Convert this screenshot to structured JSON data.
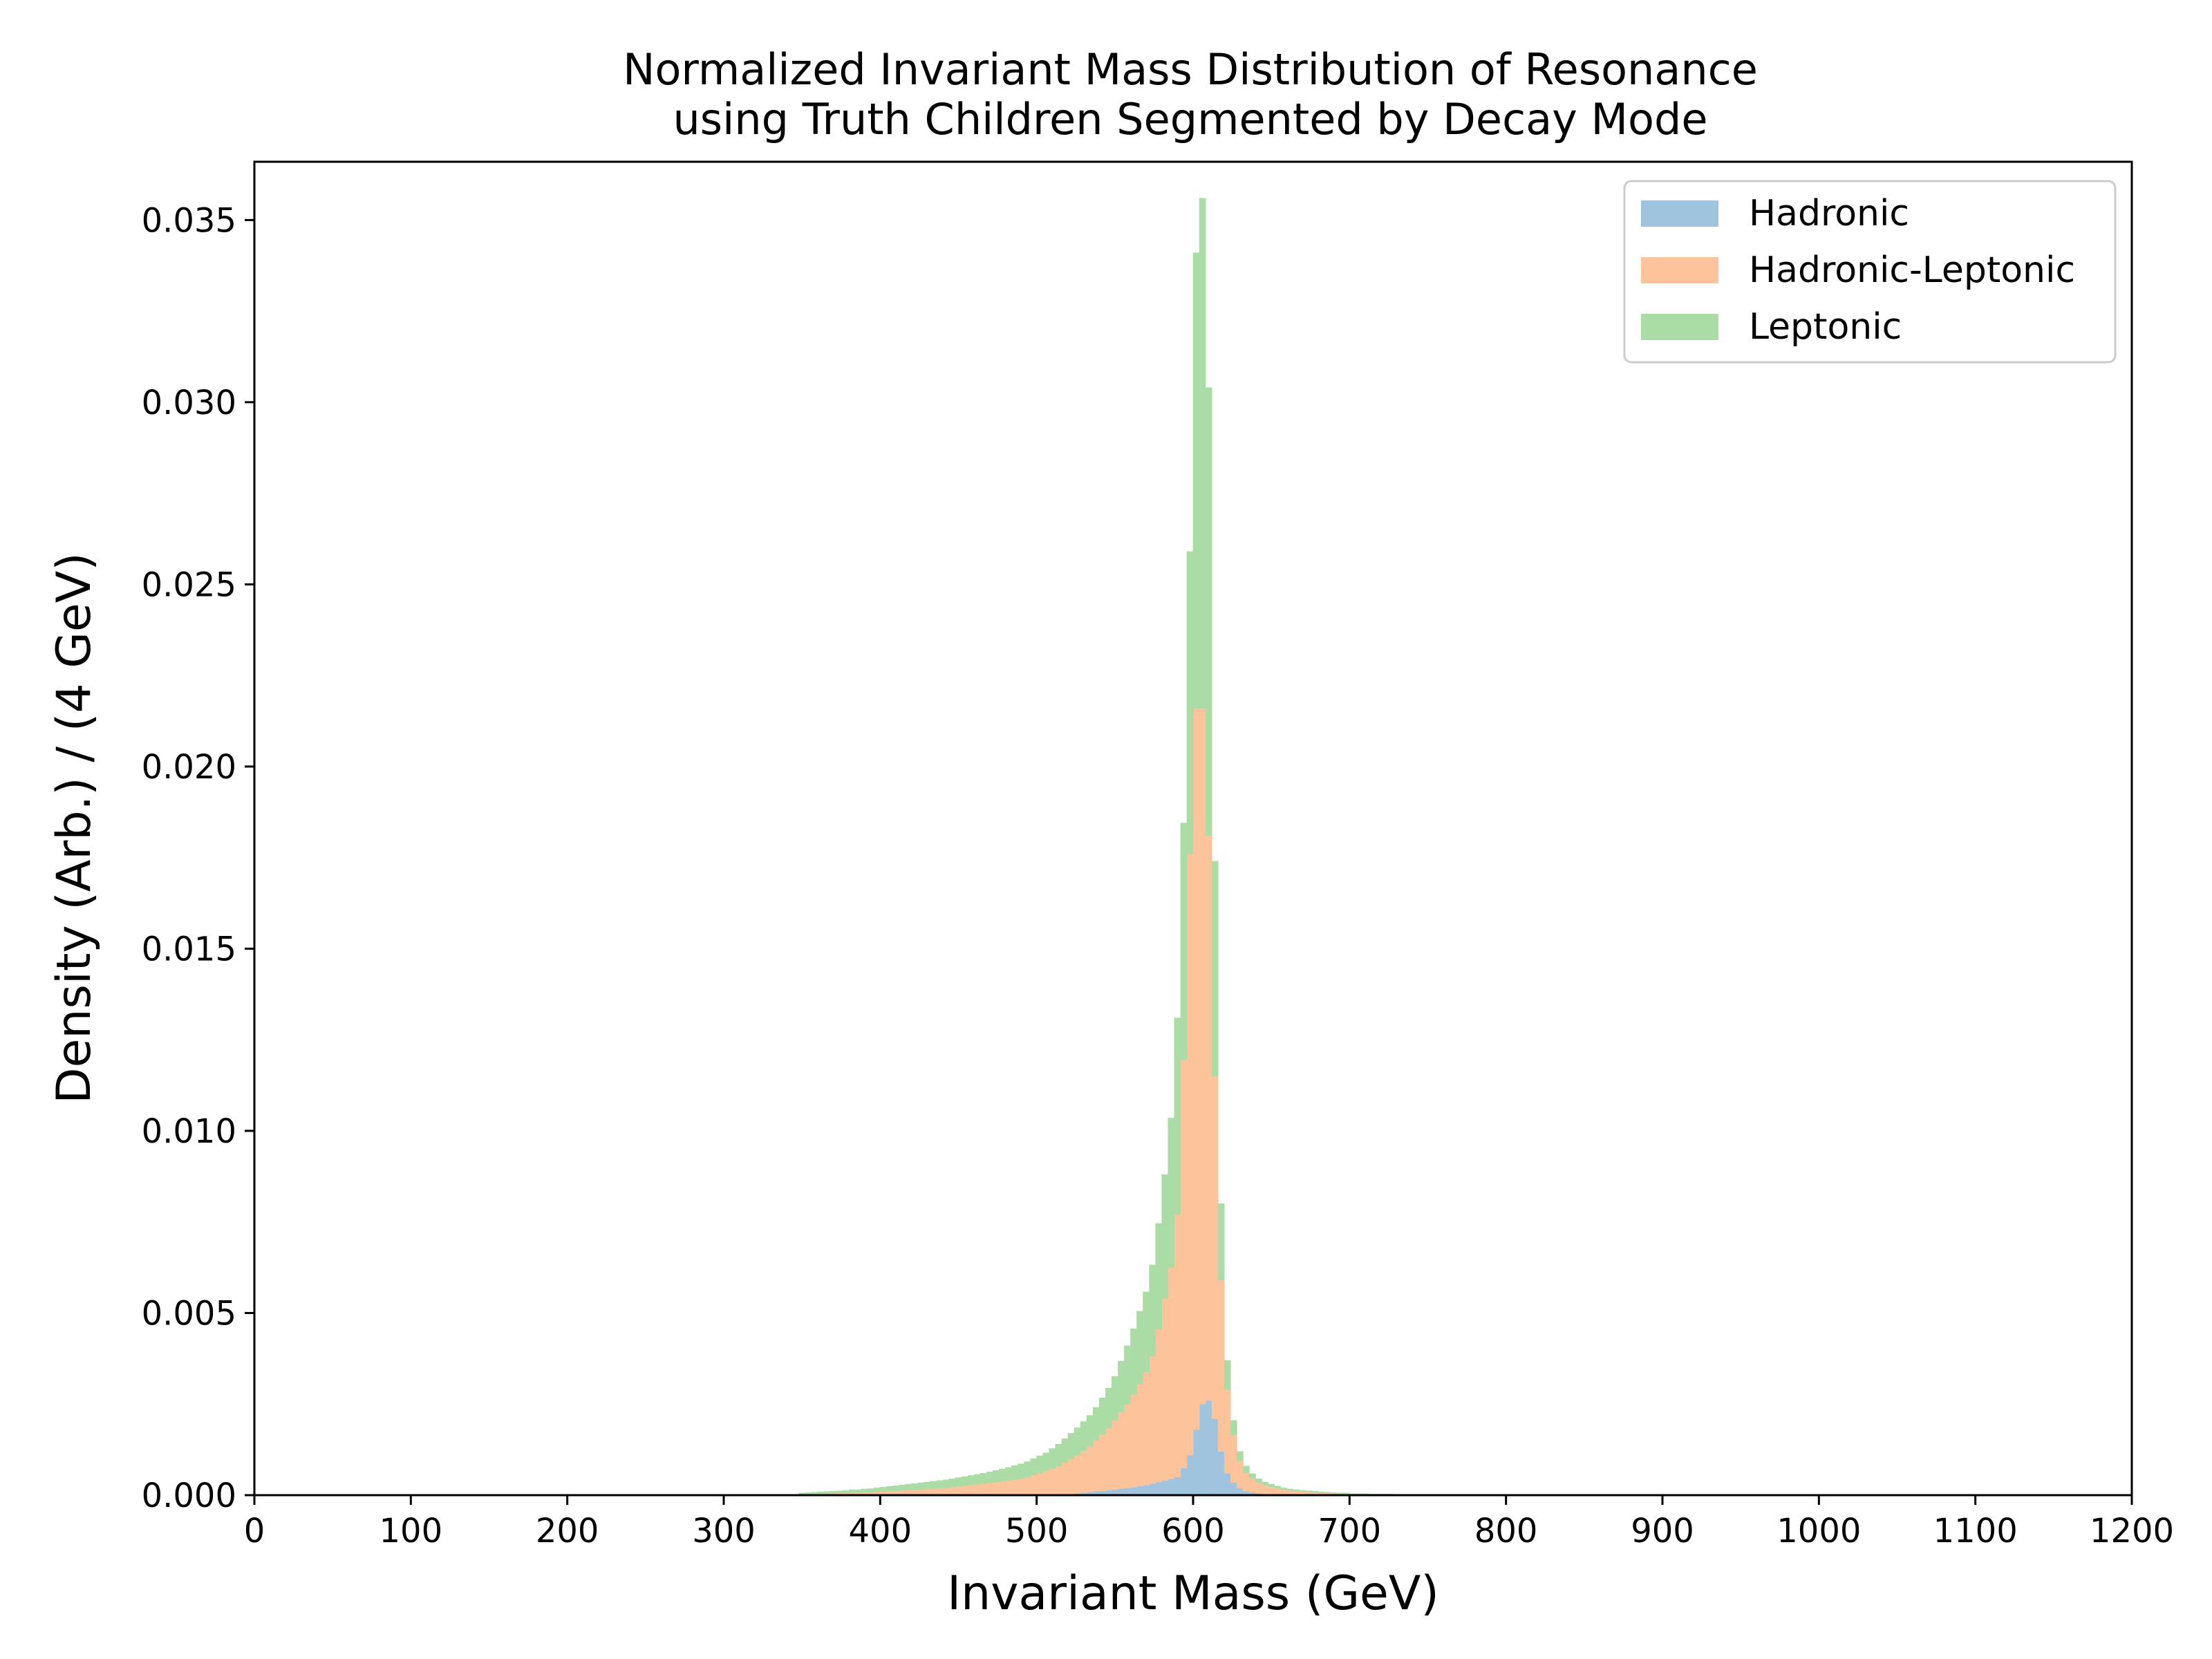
{
  "chart_data": {
    "type": "bar",
    "title": "Normalized Invariant Mass Distribution of Resonance",
    "subtitle": "using Truth Children Segmented by Decay Mode",
    "xlabel": "Invariant Mass (GeV)",
    "ylabel": "Density (Arb.) / (4 GeV)",
    "xlim": [
      0,
      1200
    ],
    "ylim": [
      0,
      0.0366
    ],
    "xticks": [
      "0",
      "100",
      "200",
      "300",
      "400",
      "500",
      "600",
      "700",
      "800",
      "900",
      "1000",
      "1100",
      "1200"
    ],
    "yticks": [
      "0.000",
      "0.005",
      "0.010",
      "0.015",
      "0.020",
      "0.025",
      "0.030",
      "0.035"
    ],
    "grid": false,
    "legend_position": "top-right",
    "stacked": true,
    "bin_width": 4,
    "x": [
      348,
      352,
      356,
      360,
      364,
      368,
      372,
      376,
      380,
      384,
      388,
      392,
      396,
      400,
      404,
      408,
      412,
      416,
      420,
      424,
      428,
      432,
      436,
      440,
      444,
      448,
      452,
      456,
      460,
      464,
      468,
      472,
      476,
      480,
      484,
      488,
      492,
      496,
      500,
      504,
      508,
      512,
      516,
      520,
      524,
      528,
      532,
      536,
      540,
      544,
      548,
      552,
      556,
      560,
      564,
      568,
      572,
      576,
      580,
      584,
      588,
      592,
      596,
      600,
      604,
      608,
      612,
      616,
      620,
      624,
      628,
      632,
      636,
      640,
      644,
      648,
      652,
      656,
      660,
      664,
      668,
      672,
      676,
      680,
      684,
      688,
      692,
      696,
      700,
      704,
      708,
      712,
      716,
      720,
      724,
      728,
      732,
      736,
      740,
      744,
      748
    ],
    "series": [
      {
        "name": "Hadronic",
        "color": "#a1c4de",
        "values": [
          0,
          0,
          0,
          0,
          0,
          0,
          0,
          0,
          0,
          0,
          0,
          0,
          0,
          0,
          0,
          0,
          0,
          0,
          0,
          0,
          0,
          0,
          0,
          0,
          0,
          0,
          0,
          0,
          0,
          0,
          0,
          0,
          0,
          0,
          0,
          0,
          0,
          0,
          0,
          0,
          0,
          0,
          2e-05,
          3e-05,
          5e-05,
          7e-05,
          9e-05,
          0.00011,
          0.00012,
          0.00014,
          0.00016,
          0.00018,
          0.0002,
          0.00022,
          0.00025,
          0.00028,
          0.00032,
          0.00036,
          0.0004,
          0.00045,
          0.0005,
          0.00075,
          0.0011,
          0.0018,
          0.0025,
          0.0026,
          0.0021,
          0.0012,
          0.0006,
          0.00035,
          0.0002,
          0.00012,
          8e-05,
          5e-05,
          3e-05,
          2e-05,
          1e-05,
          0,
          0,
          0,
          0,
          0,
          0,
          0,
          0,
          0,
          0,
          0,
          0,
          0,
          0,
          0,
          0,
          0,
          0,
          0,
          0,
          0,
          0,
          0,
          0
        ]
      },
      {
        "name": "Hadronic-Leptonic",
        "color": "#fdc49b",
        "values": [
          3e-05,
          3e-05,
          4e-05,
          4e-05,
          5e-05,
          5e-05,
          6e-05,
          6e-05,
          7e-05,
          7e-05,
          8e-05,
          8e-05,
          9e-05,
          0.0001,
          0.00011,
          0.00012,
          0.00013,
          0.00014,
          0.00015,
          0.00016,
          0.00017,
          0.00018,
          0.00019,
          0.0002,
          0.00022,
          0.00024,
          0.00026,
          0.00028,
          0.0003,
          0.00032,
          0.00034,
          0.00036,
          0.00038,
          0.0004,
          0.00043,
          0.00046,
          0.0005,
          0.00055,
          0.0006,
          0.00066,
          0.00073,
          0.0008,
          0.00088,
          0.00097,
          0.00105,
          0.00115,
          0.00125,
          0.0014,
          0.00155,
          0.0017,
          0.0019,
          0.0021,
          0.0023,
          0.00255,
          0.0028,
          0.0031,
          0.0035,
          0.0042,
          0.005,
          0.0058,
          0.0072,
          0.0112,
          0.0165,
          0.0198,
          0.0191,
          0.0155,
          0.0094,
          0.0047,
          0.0023,
          0.0013,
          0.00075,
          0.0005,
          0.00038,
          0.0003,
          0.00025,
          0.00021,
          0.00018,
          0.00015,
          0.00013,
          0.00011,
          0.0001,
          9e-05,
          8e-05,
          7e-05,
          6e-05,
          5e-05,
          4e-05,
          4e-05,
          3e-05,
          3e-05,
          3e-05,
          2e-05,
          2e-05,
          2e-05,
          2e-05,
          1e-05,
          1e-05,
          1e-05,
          1e-05,
          1e-05,
          1e-05
        ]
      },
      {
        "name": "Leptonic",
        "color": "#abdca5",
        "values": [
          3e-05,
          4e-05,
          4e-05,
          5e-05,
          5e-05,
          6e-05,
          6e-05,
          7e-05,
          8e-05,
          8e-05,
          9e-05,
          0.0001,
          0.00011,
          0.00012,
          0.00013,
          0.00014,
          0.00015,
          0.00016,
          0.00017,
          0.00018,
          0.00019,
          0.0002,
          0.00021,
          0.00022,
          0.00023,
          0.00024,
          0.00025,
          0.00026,
          0.00027,
          0.00028,
          0.0003,
          0.00032,
          0.00034,
          0.00036,
          0.00038,
          0.0004,
          0.00042,
          0.00045,
          0.00048,
          0.0005,
          0.00055,
          0.0006,
          0.00065,
          0.0007,
          0.00075,
          0.0008,
          0.00085,
          0.0009,
          0.001,
          0.0011,
          0.0012,
          0.0014,
          0.0016,
          0.0018,
          0.002,
          0.0022,
          0.0025,
          0.0029,
          0.0034,
          0.0041,
          0.0054,
          0.0065,
          0.0083,
          0.0125,
          0.014,
          0.0123,
          0.0059,
          0.0021,
          0.0008,
          0.0004,
          0.00025,
          0.00018,
          0.00013,
          0.0001,
          8e-05,
          7e-05,
          6e-05,
          5e-05,
          4e-05,
          4e-05,
          3e-05,
          3e-05,
          3e-05,
          2e-05,
          2e-05,
          2e-05,
          2e-05,
          2e-05,
          1e-05,
          1e-05,
          1e-05,
          1e-05,
          1e-05,
          1e-05,
          1e-05,
          1e-05,
          0,
          0,
          0,
          0,
          0
        ]
      }
    ]
  }
}
